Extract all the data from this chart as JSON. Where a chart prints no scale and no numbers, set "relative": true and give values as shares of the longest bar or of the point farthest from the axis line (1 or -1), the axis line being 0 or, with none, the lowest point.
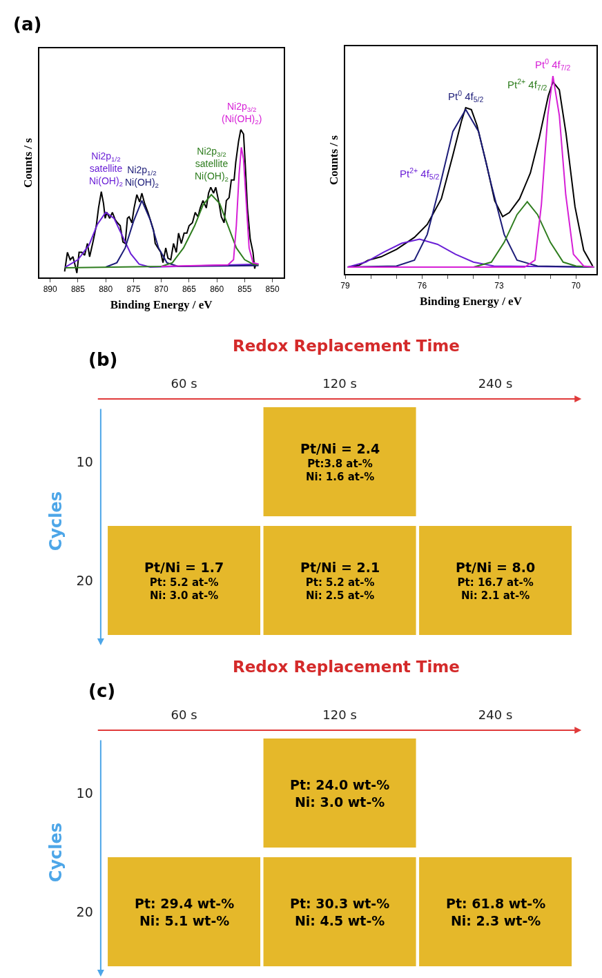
{
  "chart_data": [
    {
      "type": "line",
      "relative": true,
      "xlabel": "Binding Energy / eV",
      "ylabel": "Counts / s",
      "annotations": [
        "(a)"
      ],
      "xlim": [
        892,
        848
      ],
      "xticks": [
        890,
        885,
        880,
        875,
        870,
        865,
        860,
        855,
        850
      ],
      "series": [
        {
          "color": "#000000",
          "x": [
            887.4,
            886.9,
            886.4,
            885.9,
            885.5,
            885.2,
            884.8,
            884.3,
            883.8,
            883.3,
            882.9,
            882.3,
            881.7,
            881.3,
            880.8,
            880.4,
            880.1,
            879.8,
            879.3,
            878.8,
            878.3,
            877.9,
            877.4,
            876.9,
            876.5,
            876.1,
            875.8,
            875.3,
            874.9,
            874.4,
            873.9,
            873.5,
            873.0,
            872.4,
            871.9,
            871.4,
            871.1,
            870.6,
            870.1,
            869.7,
            869.2,
            868.8,
            868.3,
            867.8,
            867.3,
            866.9,
            866.4,
            865.9,
            865.4,
            865.0,
            864.4,
            863.9,
            863.4,
            863.0,
            862.5,
            861.9,
            861.5,
            861.1,
            860.6,
            860.2,
            859.6,
            859.2,
            858.7,
            858.3,
            857.8,
            857.4,
            856.9,
            856.6,
            856.1,
            855.7,
            855.2,
            854.9,
            854.5,
            854.0,
            853.5,
            853.2,
            853.0
          ],
          "values": [
            0.04,
            0.17,
            0.12,
            0.14,
            0.08,
            0.03,
            0.17,
            0.17,
            0.15,
            0.23,
            0.14,
            0.24,
            0.35,
            0.47,
            0.58,
            0.5,
            0.4,
            0.44,
            0.4,
            0.44,
            0.39,
            0.37,
            0.35,
            0.24,
            0.23,
            0.4,
            0.41,
            0.37,
            0.47,
            0.56,
            0.51,
            0.57,
            0.5,
            0.44,
            0.38,
            0.32,
            0.23,
            0.2,
            0.17,
            0.1,
            0.2,
            0.13,
            0.12,
            0.23,
            0.17,
            0.3,
            0.23,
            0.3,
            0.3,
            0.35,
            0.37,
            0.44,
            0.41,
            0.47,
            0.52,
            0.47,
            0.57,
            0.61,
            0.57,
            0.61,
            0.5,
            0.41,
            0.37,
            0.52,
            0.54,
            0.66,
            0.66,
            0.78,
            0.92,
            1.0,
            0.97,
            0.77,
            0.47,
            0.26,
            0.17,
            0.06,
            0.09
          ]
        },
        {
          "name": "Ni2p$_{1/2}$\nsatellite\nNi(OH)$_{2}$",
          "color": "#6a1fd6",
          "x": [
            887.3,
            885,
            883,
            881.5,
            880,
            878.5,
            877,
            875.5,
            874,
            872,
            852.5
          ],
          "values": [
            0.07,
            0.12,
            0.22,
            0.36,
            0.44,
            0.4,
            0.28,
            0.16,
            0.09,
            0.07,
            0.09
          ]
        },
        {
          "name": "Ni2p$_{1/2}$\nNi(OH)$_{2}$",
          "color": "#1c1c78",
          "x": [
            880,
            878,
            876.5,
            875,
            873.5,
            872,
            870.5,
            869,
            867,
            852.5
          ],
          "values": [
            0.07,
            0.1,
            0.2,
            0.38,
            0.52,
            0.39,
            0.2,
            0.1,
            0.075,
            0.08
          ]
        },
        {
          "name": "Ni2p$_{3/2}$\nsatellite\nNi(OH)$_{2}$",
          "color": "#2e7d1e",
          "x": [
            887.3,
            870,
            868,
            866,
            864,
            862.5,
            861,
            859.5,
            858,
            856.5,
            855,
            853.5,
            852.5
          ],
          "values": [
            0.065,
            0.075,
            0.1,
            0.2,
            0.35,
            0.49,
            0.56,
            0.5,
            0.35,
            0.2,
            0.12,
            0.09,
            0.085
          ]
        },
        {
          "name": "Ni2p$_{3/2}$\n(Ni(OH)$_{2}$)",
          "color": "#d61fd6",
          "x": [
            870,
            858,
            857,
            856.5,
            856,
            855.6,
            855.2,
            854.7,
            854.2,
            853.5,
            852.5
          ],
          "values": [
            0.075,
            0.085,
            0.12,
            0.35,
            0.7,
            0.88,
            0.8,
            0.5,
            0.2,
            0.1,
            0.09
          ]
        }
      ]
    },
    {
      "type": "line",
      "relative": true,
      "xlabel": "Binding Energy / eV",
      "ylabel": "Counts / s",
      "xlim": [
        79,
        69.2
      ],
      "xticks": [
        79,
        {
          "value": 78,
          "label": null
        },
        {
          "value": 77,
          "label": null
        },
        76,
        {
          "value": 75,
          "label": null
        },
        {
          "value": 74,
          "label": null
        },
        73,
        {
          "value": 72,
          "label": null
        },
        {
          "value": 71,
          "label": null
        },
        70
      ],
      "series": [
        {
          "color": "#000000",
          "x": [
            78.9,
            78.46,
            78.1,
            77.6,
            76.99,
            76.3,
            75.8,
            75.25,
            74.8,
            74.47,
            74.3,
            74.08,
            73.86,
            73.5,
            73.17,
            72.86,
            72.6,
            72.2,
            71.78,
            71.43,
            71.08,
            70.9,
            70.65,
            70.39,
            70.04,
            69.7,
            69.35
          ],
          "values": [
            0.035,
            0.044,
            0.07,
            0.087,
            0.125,
            0.185,
            0.25,
            0.38,
            0.6,
            0.77,
            0.84,
            0.83,
            0.75,
            0.56,
            0.37,
            0.29,
            0.31,
            0.38,
            0.51,
            0.69,
            0.9,
            0.97,
            0.93,
            0.71,
            0.34,
            0.12,
            0.04
          ]
        },
        {
          "name": "Pt$^{2+}$ 4f$_{5/2}$",
          "color": "#6a1fd6",
          "x": [
            78.9,
            78.2,
            77.5,
            76.8,
            76.1,
            75.4,
            74.7,
            74,
            73.2,
            69.3
          ],
          "values": [
            0.035,
            0.06,
            0.11,
            0.155,
            0.176,
            0.15,
            0.1,
            0.06,
            0.04,
            0.035
          ]
        },
        {
          "name": "Pt$^{0}$ 4f$_{5/2}$",
          "color": "#1c1c78",
          "x": [
            78.9,
            77,
            76.3,
            75.8,
            75.3,
            74.8,
            74.3,
            73.8,
            73.3,
            72.8,
            72.3,
            71.5,
            69.3
          ],
          "values": [
            0.035,
            0.04,
            0.07,
            0.2,
            0.45,
            0.72,
            0.83,
            0.72,
            0.45,
            0.2,
            0.07,
            0.04,
            0.035
          ]
        },
        {
          "name": "Pt$^{2+}$ 4f$_{7/2}$",
          "color": "#2e7d1e",
          "x": [
            74,
            73.3,
            72.8,
            72.3,
            71.9,
            71.5,
            71.0,
            70.5,
            70,
            69.3
          ],
          "values": [
            0.035,
            0.06,
            0.16,
            0.3,
            0.365,
            0.3,
            0.16,
            0.06,
            0.04,
            0.035
          ]
        },
        {
          "name": "Pt$^{0}$ 4f$_{7/2}$",
          "color": "#d61fd6",
          "x": [
            78.9,
            72,
            71.6,
            71.35,
            71.1,
            70.9,
            70.65,
            70.4,
            70.1,
            69.7,
            69.3
          ],
          "values": [
            0.035,
            0.035,
            0.07,
            0.35,
            0.8,
            1.0,
            0.8,
            0.4,
            0.1,
            0.04,
            0.035
          ]
        }
      ]
    },
    {
      "type": "other",
      "title": "Redox Replacement Time",
      "ylabel": "Cycles",
      "annotations": [
        "(b)"
      ],
      "color": "#e5b82a",
      "categories": [
        "60 s",
        "120 s",
        "240 s"
      ],
      "y_categories": [
        "10",
        "20"
      ],
      "cell_labels": [
        [
          null,
          "Pt/Ni = 2.4\nPt:3.8 at-%\nNi: 1.6 at-%",
          null
        ],
        [
          "Pt/Ni = 1.7\nPt: 5.2 at-%\nNi: 3.0 at-%",
          "Pt/Ni = 2.1\nPt: 5.2 at-%\nNi: 2.5 at-%",
          "Pt/Ni = 8.0\nPt: 16.7 at-%\nNi: 2.1 at-%"
        ]
      ]
    },
    {
      "type": "other",
      "title": "Redox Replacement Time",
      "ylabel": "Cycles",
      "annotations": [
        "(c)"
      ],
      "color": "#e5b82a",
      "categories": [
        "60 s",
        "120 s",
        "240 s"
      ],
      "y_categories": [
        "10",
        "20"
      ],
      "cell_labels": [
        [
          null,
          "Pt: 24.0 wt-%\nNi: 3.0 wt-%",
          null
        ],
        [
          "Pt: 29.4 wt-%\nNi: 5.1 wt-%",
          "Pt: 30.3 wt-%\nNi: 4.5 wt-%",
          "Pt: 61.8 wt-%\nNi: 2.3 wt-%"
        ]
      ]
    }
  ]
}
